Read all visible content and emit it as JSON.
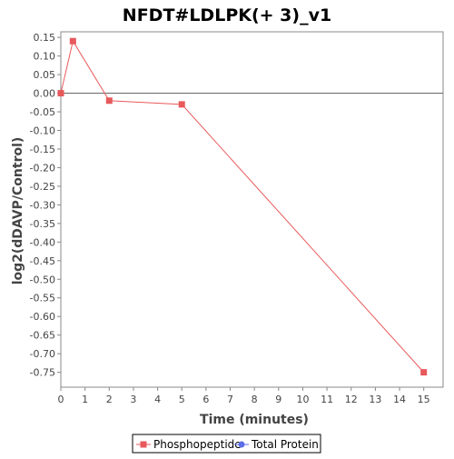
{
  "chart_data": {
    "type": "line",
    "title": "NFDT#LDLPK(+ 3)_v1",
    "xlabel": "Time (minutes)",
    "ylabel": "log2(dDAVP/Control)",
    "xlim": [
      0,
      15.8
    ],
    "ylim": [
      -0.79,
      0.165
    ],
    "x_ticks": [
      0,
      1,
      2,
      3,
      4,
      5,
      6,
      7,
      8,
      9,
      10,
      11,
      12,
      13,
      14,
      15
    ],
    "y_ticks": [
      0.15,
      0.1,
      0.05,
      0.0,
      -0.05,
      -0.1,
      -0.15,
      -0.2,
      -0.25,
      -0.3,
      -0.35,
      -0.4,
      -0.45,
      -0.5,
      -0.55,
      -0.6,
      -0.65,
      -0.7,
      -0.75
    ],
    "y_tick_labels": [
      "0.15",
      "0.10",
      "0.05",
      "0.00",
      "-0.05",
      "-0.10",
      "-0.15",
      "-0.20",
      "-0.25",
      "-0.30",
      "-0.35",
      "-0.40",
      "-0.45",
      "-0.50",
      "-0.55",
      "-0.60",
      "-0.65",
      "-0.70",
      "-0.75"
    ],
    "zero_line": true,
    "grid": false,
    "legend_position": "bottom",
    "series": [
      {
        "name": "Phosphopeptide",
        "color": "#e8595b",
        "marker": "square",
        "x": [
          0,
          0.5,
          2,
          5,
          15
        ],
        "y": [
          0.0,
          0.14,
          -0.02,
          -0.03,
          -0.75
        ]
      },
      {
        "name": "Total Protein",
        "color": "#5b6ee8",
        "marker": "circle",
        "x": [],
        "y": []
      }
    ]
  }
}
